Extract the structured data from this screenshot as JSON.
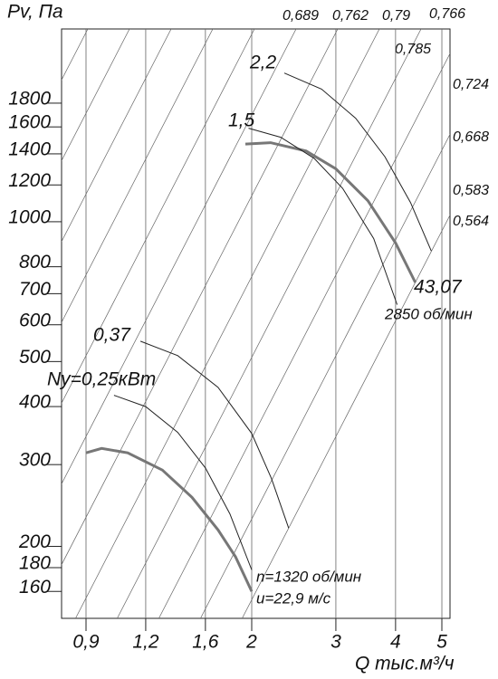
{
  "chart_data": {
    "type": "line",
    "ylabel": "Pv, Па",
    "xlabel": "Q тыс.м³/ч",
    "xscale": "log",
    "yscale": "log",
    "xlim": [
      0.8,
      5.2
    ],
    "ylim": [
      140,
      2600
    ],
    "xticks": [
      {
        "value": 0.9,
        "label": "0,9"
      },
      {
        "value": 1.2,
        "label": "1,2"
      },
      {
        "value": 1.6,
        "label": "1,6"
      },
      2,
      3,
      4,
      5
    ],
    "yticks": [
      160,
      180,
      200,
      300,
      400,
      500,
      600,
      700,
      800,
      1000,
      1200,
      1400,
      1600,
      1800
    ],
    "grid": true,
    "series": [
      {
        "name": "n=1320 об/мин",
        "color": "#777777",
        "width": 3,
        "x": [
          0.9,
          0.97,
          1.1,
          1.3,
          1.5,
          1.7,
          1.85,
          2.0
        ],
        "values": [
          318,
          325,
          318,
          292,
          255,
          217,
          190,
          160
        ]
      },
      {
        "name": "Ny=0,25кВт",
        "color": "#222222",
        "width": 1,
        "x": [
          1.03,
          1.2,
          1.4,
          1.6,
          1.8,
          2.0
        ],
        "values": [
          423,
          400,
          352,
          295,
          235,
          178
        ]
      },
      {
        "name": "0,37",
        "color": "#222222",
        "width": 1,
        "x": [
          1.17,
          1.4,
          1.7,
          2.0,
          2.2,
          2.39
        ],
        "values": [
          553,
          515,
          440,
          350,
          280,
          219
        ]
      },
      {
        "name": "2850 об/мин",
        "color": "#777777",
        "width": 3,
        "x": [
          1.94,
          2.19,
          2.6,
          3.0,
          3.5,
          4.0,
          4.4
        ],
        "values": [
          1470,
          1480,
          1420,
          1300,
          1110,
          900,
          740
        ]
      },
      {
        "name": "1,5",
        "color": "#222222",
        "width": 1,
        "x": [
          1.97,
          2.3,
          2.7,
          3.1,
          3.6,
          4.03
        ],
        "values": [
          1590,
          1520,
          1370,
          1180,
          920,
          663
        ]
      },
      {
        "name": "2,2",
        "color": "#222222",
        "width": 1,
        "x": [
          2.34,
          2.8,
          3.3,
          3.8,
          4.3,
          4.75
        ],
        "values": [
          2090,
          1930,
          1670,
          1380,
          1100,
          865
        ]
      }
    ],
    "annotations": [
      "43,07",
      "u=22,9 м/с"
    ],
    "efficiency_labels": [
      "0,689",
      "0,762",
      "0,79",
      "0,766",
      "0,785",
      "0,724",
      "0,668",
      "0,583",
      "0,564"
    ]
  }
}
